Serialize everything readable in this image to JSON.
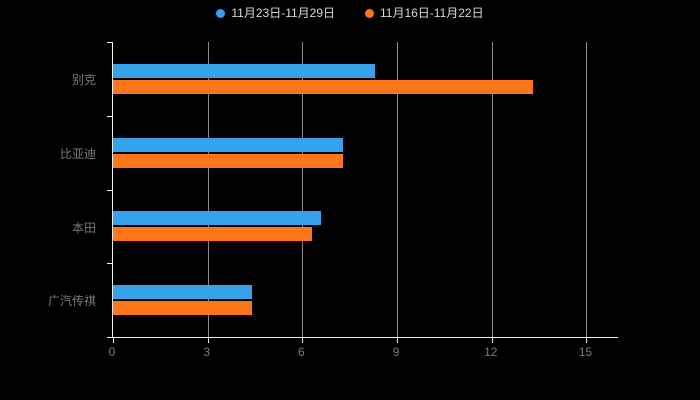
{
  "legend": {
    "items": [
      {
        "label": "11月23日-11月29日",
        "color": "#36A2EB"
      },
      {
        "label": "11月16日-11月22日",
        "color": "#FF7519"
      }
    ]
  },
  "chart_data": {
    "type": "bar",
    "orientation": "horizontal",
    "title": "",
    "categories": [
      "别克",
      "比亚迪",
      "本田",
      "广汽传祺"
    ],
    "series": [
      {
        "name": "11月23日-11月29日",
        "color": "#36A2EB",
        "values": [
          8.3,
          7.3,
          6.6,
          4.4
        ]
      },
      {
        "name": "11月16日-11月22日",
        "color": "#FF7519",
        "values": [
          13.3,
          7.3,
          6.3,
          4.4
        ]
      }
    ],
    "x_ticks": [
      0,
      3,
      6,
      9,
      12,
      15
    ],
    "xlim": [
      0,
      16
    ],
    "grid": true,
    "legend_position": "top",
    "background": "#000000",
    "axis_color": "#EFEFEF",
    "grid_color": "#8A8A8A",
    "label_color": "#7A7A7A",
    "legend_text_color": "#D8D8D8"
  }
}
